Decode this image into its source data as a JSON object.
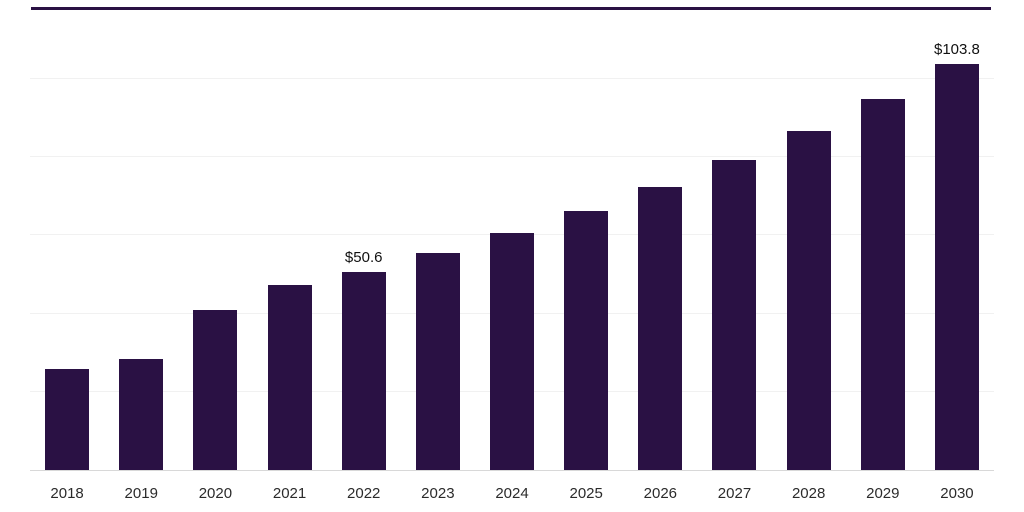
{
  "chart_data": {
    "type": "bar",
    "title": "",
    "xlabel": "",
    "ylabel": "",
    "categories": [
      "2018",
      "2019",
      "2020",
      "2021",
      "2022",
      "2023",
      "2024",
      "2025",
      "2026",
      "2027",
      "2028",
      "2029",
      "2030"
    ],
    "values": [
      25.9,
      28.5,
      41.0,
      47.3,
      50.6,
      55.4,
      60.6,
      66.3,
      72.5,
      79.3,
      86.8,
      94.9,
      103.8
    ],
    "data_labels": [
      "",
      "",
      "",
      "",
      "$50.6",
      "",
      "",
      "",
      "",
      "",
      "",
      "",
      "$103.8"
    ],
    "ylim": [
      0,
      110
    ],
    "gridline_values": [
      20,
      40,
      60,
      80,
      100
    ],
    "grid": true,
    "legend": false,
    "bar_color": "#2a1144",
    "top_line_color": "#2a1144",
    "gridline_color": "#f1f1f1",
    "axis_line_color": "#d8d8d8"
  }
}
